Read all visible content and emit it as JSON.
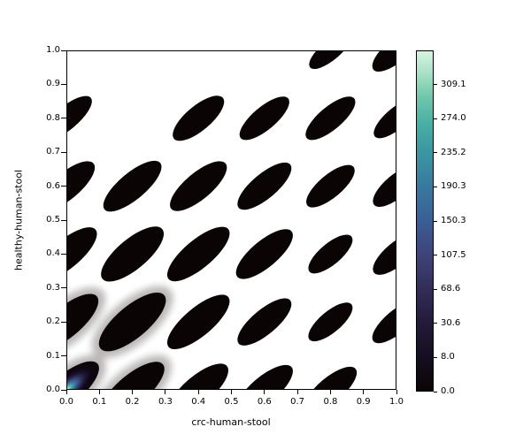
{
  "chart_data": {
    "type": "heatmap",
    "subtype": "filled-kde-contour-plot",
    "title": "",
    "xlabel": "crc-human-stool",
    "ylabel": "healthy-human-stool",
    "xlim": [
      0.0,
      1.0
    ],
    "ylim": [
      0.0,
      1.0
    ],
    "grid": false,
    "x_ticks": [
      "0.0",
      "0.1",
      "0.2",
      "0.3",
      "0.4",
      "0.5",
      "0.6",
      "0.7",
      "0.8",
      "0.9",
      "1.0"
    ],
    "y_ticks": [
      "0.0",
      "0.1",
      "0.2",
      "0.3",
      "0.4",
      "0.5",
      "0.6",
      "0.7",
      "0.8",
      "0.9",
      "1.0"
    ],
    "background_color": "#ffffff",
    "contour_fill_color": "#0b0405",
    "lobe_angle_deg": -40,
    "density_lobes": [
      {
        "x": 0.0,
        "y": 0.0,
        "a": 46,
        "b": 17,
        "peak": true,
        "soft": true
      },
      {
        "x": 0.2,
        "y": 0.0,
        "a": 45,
        "b": 17,
        "soft": true
      },
      {
        "x": 0.4,
        "y": 0.0,
        "a": 42,
        "b": 16
      },
      {
        "x": 0.6,
        "y": 0.0,
        "a": 40,
        "b": 15
      },
      {
        "x": 0.8,
        "y": 0.0,
        "a": 37,
        "b": 14
      },
      {
        "x": 0.0,
        "y": 0.2,
        "a": 45,
        "b": 17,
        "soft": true
      },
      {
        "x": 0.2,
        "y": 0.2,
        "a": 47,
        "b": 18,
        "soft": true
      },
      {
        "x": 0.4,
        "y": 0.2,
        "a": 44,
        "b": 16
      },
      {
        "x": 0.6,
        "y": 0.2,
        "a": 38,
        "b": 14
      },
      {
        "x": 0.8,
        "y": 0.2,
        "a": 31,
        "b": 12
      },
      {
        "x": 1.0,
        "y": 0.2,
        "a": 34,
        "b": 13
      },
      {
        "x": 0.0,
        "y": 0.4,
        "a": 43,
        "b": 16
      },
      {
        "x": 0.2,
        "y": 0.4,
        "a": 44,
        "b": 17
      },
      {
        "x": 0.4,
        "y": 0.4,
        "a": 44,
        "b": 16
      },
      {
        "x": 0.6,
        "y": 0.4,
        "a": 40,
        "b": 15
      },
      {
        "x": 0.8,
        "y": 0.4,
        "a": 31,
        "b": 12
      },
      {
        "x": 1.0,
        "y": 0.4,
        "a": 33,
        "b": 13
      },
      {
        "x": 0.0,
        "y": 0.6,
        "a": 40,
        "b": 15
      },
      {
        "x": 0.2,
        "y": 0.6,
        "a": 41,
        "b": 15
      },
      {
        "x": 0.4,
        "y": 0.6,
        "a": 40,
        "b": 15
      },
      {
        "x": 0.6,
        "y": 0.6,
        "a": 38,
        "b": 14
      },
      {
        "x": 0.8,
        "y": 0.6,
        "a": 34,
        "b": 13
      },
      {
        "x": 1.0,
        "y": 0.6,
        "a": 33,
        "b": 13
      },
      {
        "x": 0.0,
        "y": 0.8,
        "a": 36,
        "b": 13
      },
      {
        "x": 0.4,
        "y": 0.8,
        "a": 36,
        "b": 14
      },
      {
        "x": 0.6,
        "y": 0.8,
        "a": 35,
        "b": 13
      },
      {
        "x": 0.8,
        "y": 0.8,
        "a": 35,
        "b": 13
      },
      {
        "x": 1.0,
        "y": 0.8,
        "a": 32,
        "b": 12
      },
      {
        "x": 0.8,
        "y": 1.0,
        "a": 30,
        "b": 11
      },
      {
        "x": 1.0,
        "y": 1.0,
        "a": 34,
        "b": 13
      }
    ],
    "peak_point": {
      "x": 0.0,
      "y": 0.0
    },
    "peak_gradient": [
      [
        0.0,
        "#c9f8e2"
      ],
      [
        0.06,
        "#8ee4ca"
      ],
      [
        0.14,
        "#50b4ab"
      ],
      [
        0.24,
        "#3d809e"
      ],
      [
        0.34,
        "#3c568a"
      ],
      [
        0.45,
        "#2f3261"
      ],
      [
        0.58,
        "#1c1533"
      ],
      [
        0.72,
        "#0f0817"
      ],
      [
        1.0,
        "#0b0405"
      ]
    ],
    "colorbar": {
      "colormap": "mako",
      "tick_labels": [
        "0.0",
        "8.0",
        "30.6",
        "68.6",
        "107.5",
        "150.3",
        "190.3",
        "235.2",
        "274.0",
        "309.1"
      ],
      "tick_values": [
        0.0,
        8.0,
        30.6,
        68.6,
        107.5,
        150.3,
        190.3,
        235.2,
        274.0,
        309.1
      ],
      "gradient_stops_bottom_to_top": [
        [
          0.0,
          "#0b0405"
        ],
        [
          0.05,
          "#100a12"
        ],
        [
          0.1,
          "#150e20"
        ],
        [
          0.2,
          "#231b39"
        ],
        [
          0.3,
          "#332d58"
        ],
        [
          0.4,
          "#3e437a"
        ],
        [
          0.5,
          "#3b5e96"
        ],
        [
          0.6,
          "#38799e"
        ],
        [
          0.7,
          "#3a96a2"
        ],
        [
          0.78,
          "#46ada4"
        ],
        [
          0.86,
          "#6bc5ac"
        ],
        [
          0.93,
          "#a3e0c3"
        ],
        [
          1.0,
          "#d9f2e1"
        ]
      ]
    }
  }
}
